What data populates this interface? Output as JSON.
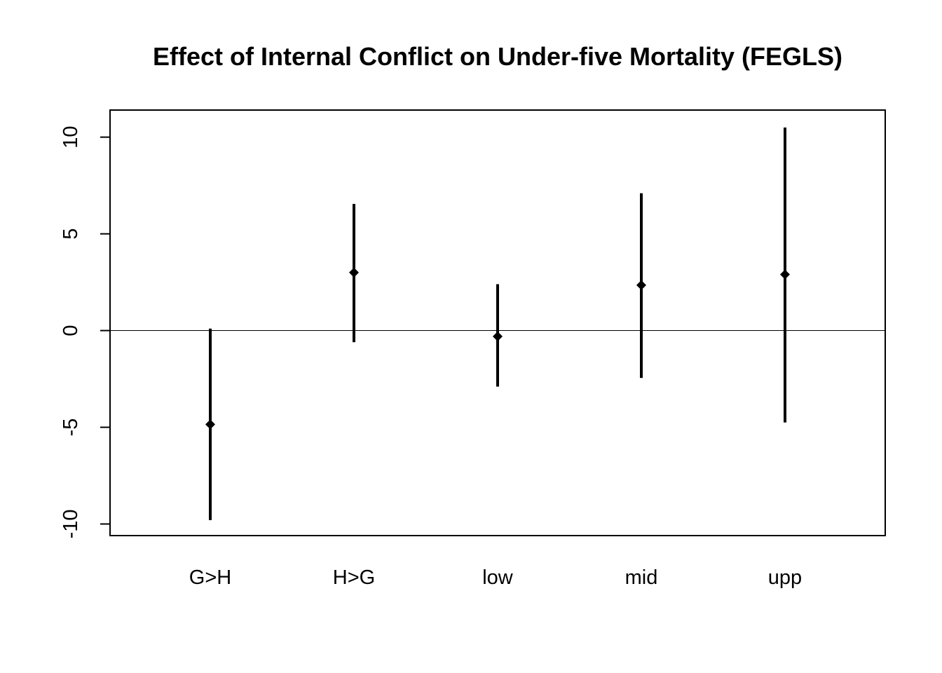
{
  "chart_data": {
    "type": "errorbar",
    "title": "Effect of Internal Conflict on Under-five Mortality (FEGLS)",
    "xlabel": "",
    "ylabel": "",
    "categories": [
      "G>H",
      "H>G",
      "low",
      "mid",
      "upp"
    ],
    "estimates": [
      -4.85,
      3.0,
      -0.3,
      2.35,
      2.9
    ],
    "lower": [
      -9.8,
      -0.6,
      -2.9,
      -2.45,
      -4.75
    ],
    "upper": [
      0.1,
      6.55,
      2.4,
      7.1,
      10.5
    ],
    "ylim": [
      -10.6,
      11.4
    ],
    "yticks": [
      -10,
      -5,
      0,
      5,
      10
    ],
    "ytick_labels": [
      "-10",
      "-5",
      "0",
      "5",
      "10"
    ],
    "reference_line": 0,
    "grid": false,
    "colors": {
      "marks": "#000000",
      "reference_line": "#000000",
      "background": "#ffffff"
    }
  }
}
